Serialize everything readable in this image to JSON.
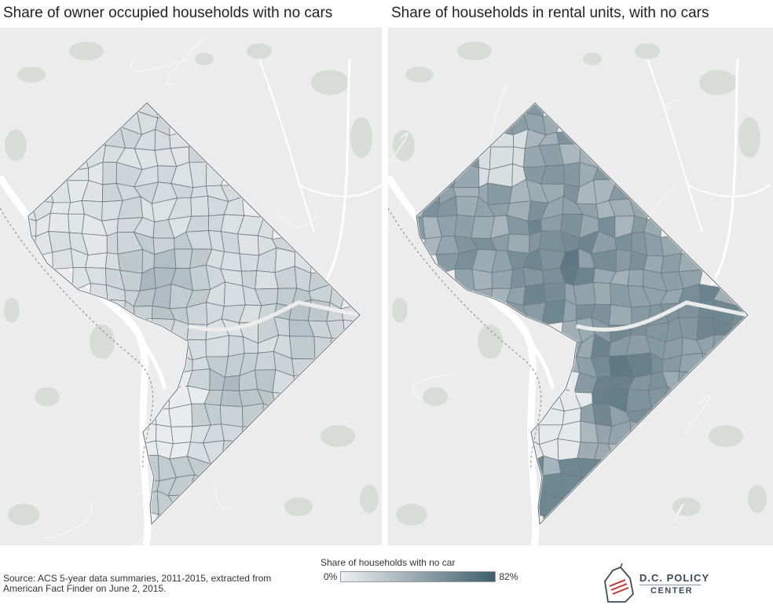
{
  "maps": {
    "left": {
      "title": "Share of owner occupied households with no cars"
    },
    "right": {
      "title": "Share of households in rental units, with no cars"
    }
  },
  "legend": {
    "title": "Share of households with no car",
    "min_label": "0%",
    "max_label": "82%",
    "min_value": 0,
    "max_value": 82,
    "color_low": "#eef0f1",
    "color_high": "#3e5e6c"
  },
  "source": "Source: ACS 5-year data summaries, 2011-2015, extracted from American Fact Finder on June 2, 2015.",
  "logo": {
    "line1": "D.C. POLICY",
    "line2": "CENTER"
  },
  "colors": {
    "map_background": "#ececec",
    "water": "#ffffff",
    "parks": "#d8dcd9",
    "tract_border": "#6f7a80"
  }
}
